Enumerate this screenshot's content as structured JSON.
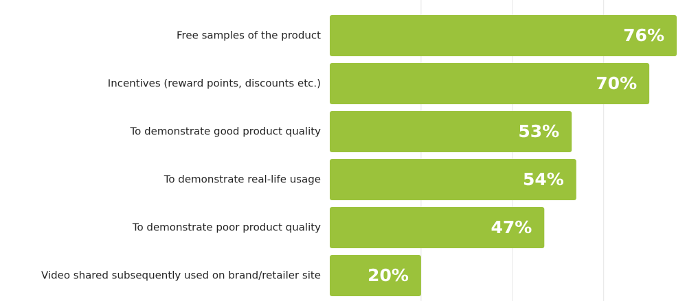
{
  "chart_data": {
    "type": "bar",
    "orientation": "horizontal",
    "categories": [
      "Free samples of the product",
      "Incentives (reward points, discounts etc.)",
      "To demonstrate good product quality",
      "To demonstrate real-life usage",
      "To demonstrate poor product quality",
      "Video shared subsequently used on brand/retailer site"
    ],
    "values": [
      76,
      70,
      53,
      54,
      47,
      20
    ],
    "value_labels": [
      "76%",
      "70%",
      "53%",
      "54%",
      "47%",
      "20%"
    ],
    "color": "#9bc23b",
    "xlim": [
      0,
      76
    ],
    "gridlines": [
      20,
      40,
      60
    ]
  }
}
